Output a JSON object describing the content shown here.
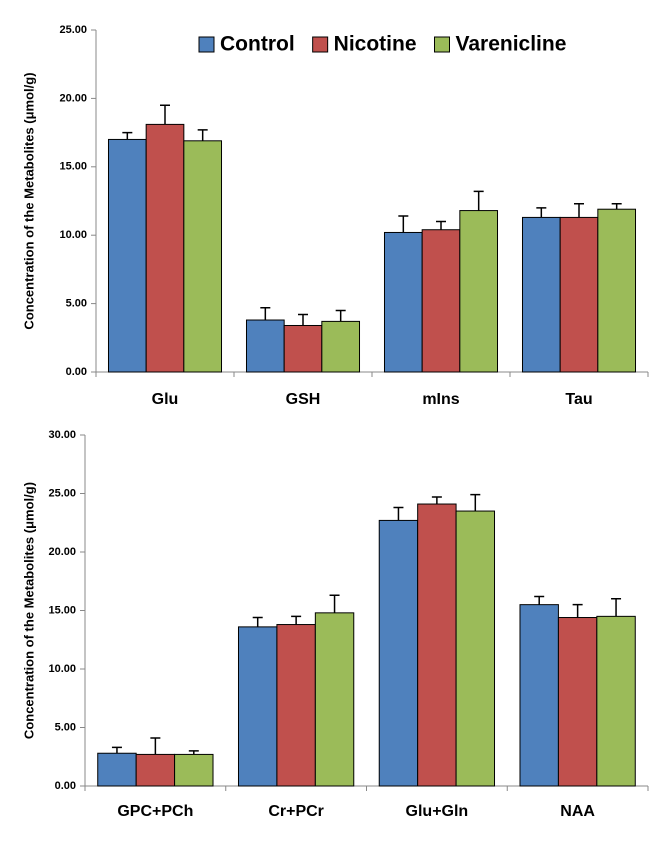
{
  "chart_data": [
    {
      "type": "bar",
      "ylabel": "Concentration of the Metabolites (μmol/g)",
      "categories": [
        "Glu",
        "GSH",
        "mIns",
        "Tau"
      ],
      "series": [
        {
          "name": "Control",
          "color": "#4f81bd",
          "values": [
            17.0,
            3.8,
            10.2,
            11.3
          ],
          "errors": [
            0.5,
            0.9,
            1.2,
            0.7
          ]
        },
        {
          "name": "Nicotine",
          "color": "#c0504d",
          "values": [
            18.1,
            3.4,
            10.4,
            11.3
          ],
          "errors": [
            1.4,
            0.8,
            0.6,
            1.0
          ]
        },
        {
          "name": "Varenicline",
          "color": "#9bbb59",
          "values": [
            16.9,
            3.7,
            11.8,
            11.9
          ],
          "errors": [
            0.8,
            0.8,
            1.4,
            0.4
          ]
        }
      ],
      "ylim": [
        0,
        25
      ],
      "yticks": [
        {
          "value": 0,
          "label": "0.00"
        },
        {
          "value": 5,
          "label": "5.00"
        },
        {
          "value": 10,
          "label": "10.00"
        },
        {
          "value": 15,
          "label": "15.00"
        },
        {
          "value": 20,
          "label": "20.00"
        },
        {
          "value": 25,
          "label": "25.00"
        }
      ],
      "legend": "upper right"
    },
    {
      "type": "bar",
      "ylabel": "Concentration of the Metabolites (μmol/g)",
      "categories": [
        "GPC+PCh",
        "Cr+PCr",
        "Glu+Gln",
        "NAA"
      ],
      "series": [
        {
          "color": "#4f81bd",
          "values": [
            2.8,
            13.6,
            22.7,
            15.5
          ],
          "errors": [
            0.5,
            0.8,
            1.1,
            0.7
          ]
        },
        {
          "color": "#c0504d",
          "values": [
            2.7,
            13.8,
            24.1,
            14.4
          ],
          "errors": [
            1.4,
            0.7,
            0.6,
            1.1
          ]
        },
        {
          "color": "#9bbb59",
          "values": [
            2.7,
            14.8,
            23.5,
            14.5
          ],
          "errors": [
            0.3,
            1.5,
            1.4,
            1.5
          ]
        }
      ],
      "ylim": [
        0,
        30
      ],
      "yticks": [
        {
          "value": 0,
          "label": "0.00"
        },
        {
          "value": 5,
          "label": "5.00"
        },
        {
          "value": 10,
          "label": "10.00"
        },
        {
          "value": 15,
          "label": "15.00"
        },
        {
          "value": 20,
          "label": "20.00"
        },
        {
          "value": 25,
          "label": "25.00"
        },
        {
          "value": 30,
          "label": "30.00"
        }
      ]
    }
  ]
}
